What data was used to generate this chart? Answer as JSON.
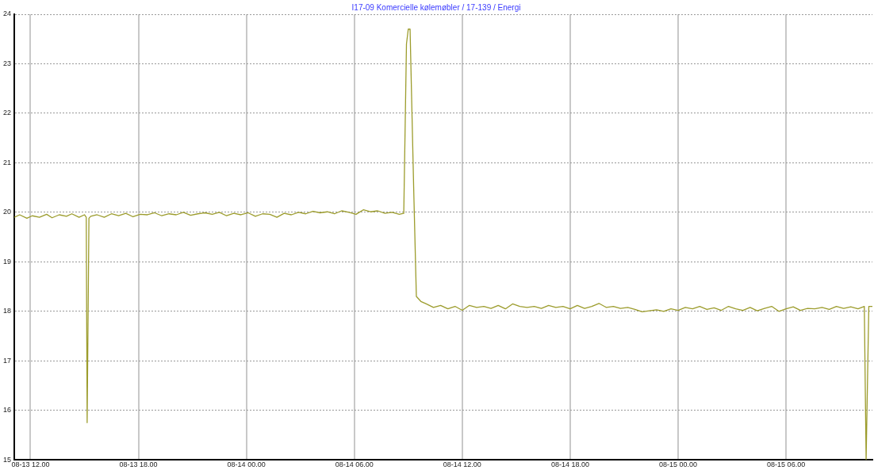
{
  "chart_data": {
    "type": "line",
    "title": "I17-09 Komercielle kølemøbler / 17-139 / Energi",
    "series": [
      {
        "color": "#9c9c2c",
        "x": [
          "--08-13T11:06",
          "--08-13T11:24",
          "--08-13T11:48",
          "--08-13T12:06",
          "--08-13T12:30",
          "--08-13T12:54",
          "--08-13T13:12",
          "--08-13T13:36",
          "--08-13T14:00",
          "--08-13T14:18",
          "--08-13T14:42",
          "--08-13T15:00",
          "--08-13T15:06",
          "--08-13T15:09",
          "--08-13T15:15",
          "--08-13T15:21",
          "--08-13T15:42",
          "--08-13T16:06",
          "--08-13T16:30",
          "--08-13T16:54",
          "--08-13T17:18",
          "--08-13T17:42",
          "--08-13T18:06",
          "--08-13T18:30",
          "--08-13T18:54",
          "--08-13T19:18",
          "--08-13T19:42",
          "--08-13T20:06",
          "--08-13T20:30",
          "--08-13T20:54",
          "--08-13T21:18",
          "--08-13T21:42",
          "--08-13T22:06",
          "--08-13T22:30",
          "--08-13T22:54",
          "--08-13T23:18",
          "--08-13T23:42",
          "--08-14T00:06",
          "--08-14T00:30",
          "--08-14T00:54",
          "--08-14T01:18",
          "--08-14T01:42",
          "--08-14T02:06",
          "--08-14T02:30",
          "--08-14T02:54",
          "--08-14T03:18",
          "--08-14T03:42",
          "--08-14T04:06",
          "--08-14T04:30",
          "--08-14T04:54",
          "--08-14T05:18",
          "--08-14T05:42",
          "--08-14T06:06",
          "--08-14T06:30",
          "--08-14T06:54",
          "--08-14T07:18",
          "--08-14T07:42",
          "--08-14T08:06",
          "--08-14T08:30",
          "--08-14T08:45",
          "--08-14T08:54",
          "--08-14T09:00",
          "--08-14T09:06",
          "--08-14T09:18",
          "--08-14T09:27",
          "--08-14T09:42",
          "--08-14T10:00",
          "--08-14T10:24",
          "--08-14T10:48",
          "--08-14T11:12",
          "--08-14T11:36",
          "--08-14T12:00",
          "--08-14T12:24",
          "--08-14T12:48",
          "--08-14T13:12",
          "--08-14T13:36",
          "--08-14T14:00",
          "--08-14T14:24",
          "--08-14T14:48",
          "--08-14T15:12",
          "--08-14T15:36",
          "--08-14T16:00",
          "--08-14T16:24",
          "--08-14T16:48",
          "--08-14T17:12",
          "--08-14T17:36",
          "--08-14T18:00",
          "--08-14T18:24",
          "--08-14T18:48",
          "--08-14T19:12",
          "--08-14T19:36",
          "--08-14T20:00",
          "--08-14T20:24",
          "--08-14T20:48",
          "--08-14T21:12",
          "--08-14T21:36",
          "--08-14T22:00",
          "--08-14T22:24",
          "--08-14T22:48",
          "--08-14T23:12",
          "--08-14T23:36",
          "--08-15T00:00",
          "--08-15T00:24",
          "--08-15T00:48",
          "--08-15T01:12",
          "--08-15T01:36",
          "--08-15T02:00",
          "--08-15T02:24",
          "--08-15T02:48",
          "--08-15T03:12",
          "--08-15T03:36",
          "--08-15T04:00",
          "--08-15T04:24",
          "--08-15T04:48",
          "--08-15T05:12",
          "--08-15T05:36",
          "--08-15T06:00",
          "--08-15T06:24",
          "--08-15T06:48",
          "--08-15T07:12",
          "--08-15T07:36",
          "--08-15T08:00",
          "--08-15T08:24",
          "--08-15T08:48",
          "--08-15T09:12",
          "--08-15T09:36",
          "--08-15T10:00",
          "--08-15T10:21",
          "--08-15T10:27",
          "--08-15T10:36",
          "--08-15T10:48"
        ],
        "values": [
          19.9,
          19.95,
          19.88,
          19.93,
          19.9,
          19.96,
          19.89,
          19.95,
          19.92,
          19.97,
          19.9,
          19.95,
          19.9,
          15.75,
          19.88,
          19.92,
          19.95,
          19.9,
          19.97,
          19.93,
          19.98,
          19.91,
          19.96,
          19.95,
          19.99,
          19.93,
          19.97,
          19.95,
          20.0,
          19.94,
          19.97,
          19.99,
          19.96,
          20.0,
          19.93,
          19.98,
          19.95,
          19.99,
          19.92,
          19.97,
          19.96,
          19.9,
          19.98,
          19.95,
          20.0,
          19.97,
          20.02,
          19.99,
          20.01,
          19.97,
          20.03,
          20.0,
          19.96,
          20.05,
          20.01,
          20.03,
          19.98,
          20.0,
          19.96,
          19.98,
          23.4,
          23.7,
          23.7,
          20.5,
          18.3,
          18.2,
          18.15,
          18.08,
          18.12,
          18.05,
          18.1,
          18.02,
          18.12,
          18.08,
          18.1,
          18.06,
          18.12,
          18.05,
          18.15,
          18.1,
          18.08,
          18.1,
          18.06,
          18.12,
          18.08,
          18.1,
          18.05,
          18.12,
          18.06,
          18.1,
          18.16,
          18.08,
          18.1,
          18.06,
          18.08,
          18.04,
          17.99,
          18.01,
          18.03,
          18.0,
          18.05,
          18.02,
          18.08,
          18.05,
          18.1,
          18.04,
          18.07,
          18.02,
          18.1,
          18.05,
          18.02,
          18.08,
          18.01,
          18.06,
          18.1,
          18.0,
          18.05,
          18.09,
          18.02,
          18.06,
          18.05,
          18.08,
          18.04,
          18.1,
          18.06,
          18.09,
          18.05,
          18.1,
          15.0,
          18.1,
          18.1
        ]
      }
    ],
    "xlim": [
      "--08-13T11:06",
      "--08-15T10:48"
    ],
    "xticks": [
      {
        "value": "--08-13T12:00",
        "label": "08-13 12.00"
      },
      {
        "value": "--08-13T18:00",
        "label": "08-13 18.00"
      },
      {
        "value": "--08-14T00:00",
        "label": "08-14 00.00"
      },
      {
        "value": "--08-14T06:00",
        "label": "08-14 06.00"
      },
      {
        "value": "--08-14T12:00",
        "label": "08-14 12.00"
      },
      {
        "value": "--08-14T18:00",
        "label": "08-14 18.00"
      },
      {
        "value": "--08-15T00:00",
        "label": "08-15 00.00"
      },
      {
        "value": "--08-15T06:00",
        "label": "08-15 06.00"
      }
    ],
    "ylim": [
      15,
      24
    ],
    "yticks": [
      15,
      16,
      17,
      18,
      19,
      20,
      21,
      22,
      23,
      24
    ],
    "grid": true,
    "legend": false,
    "marker": "none",
    "line_style": "solid"
  }
}
